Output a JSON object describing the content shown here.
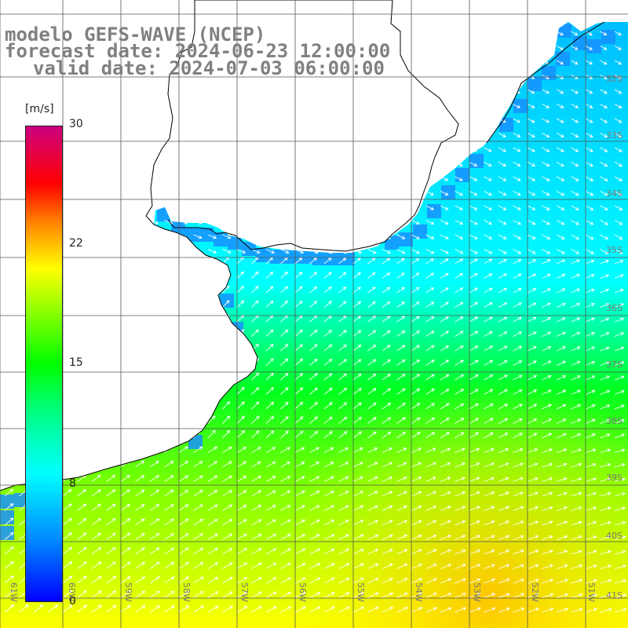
{
  "title": {
    "line1": "modelo GEFS-WAVE (NCEP)",
    "line2": "forecast date: 2024-06-23 12:00:00",
    "line3": "valid date: 2024-07-03 06:00:00"
  },
  "colorbar": {
    "unit": "[m/s]",
    "ticks": [
      "30",
      "22",
      "15",
      "8",
      "0"
    ],
    "tick_values": [
      30,
      22,
      15,
      8,
      0
    ],
    "range": [
      0,
      30
    ]
  },
  "lat_labels": [
    "32S",
    "33S",
    "34S",
    "35S",
    "36S",
    "37S",
    "38S",
    "39S",
    "40S",
    "41S"
  ],
  "lon_labels": [
    "61W",
    "60W",
    "59W",
    "58W",
    "57W",
    "56W",
    "55W",
    "54W",
    "53W",
    "52W",
    "51W"
  ],
  "colors": {
    "grid": "#555555",
    "land": "#ffffff",
    "coast": "#000000",
    "arrows": "#ffffff",
    "title": "#808080"
  }
}
